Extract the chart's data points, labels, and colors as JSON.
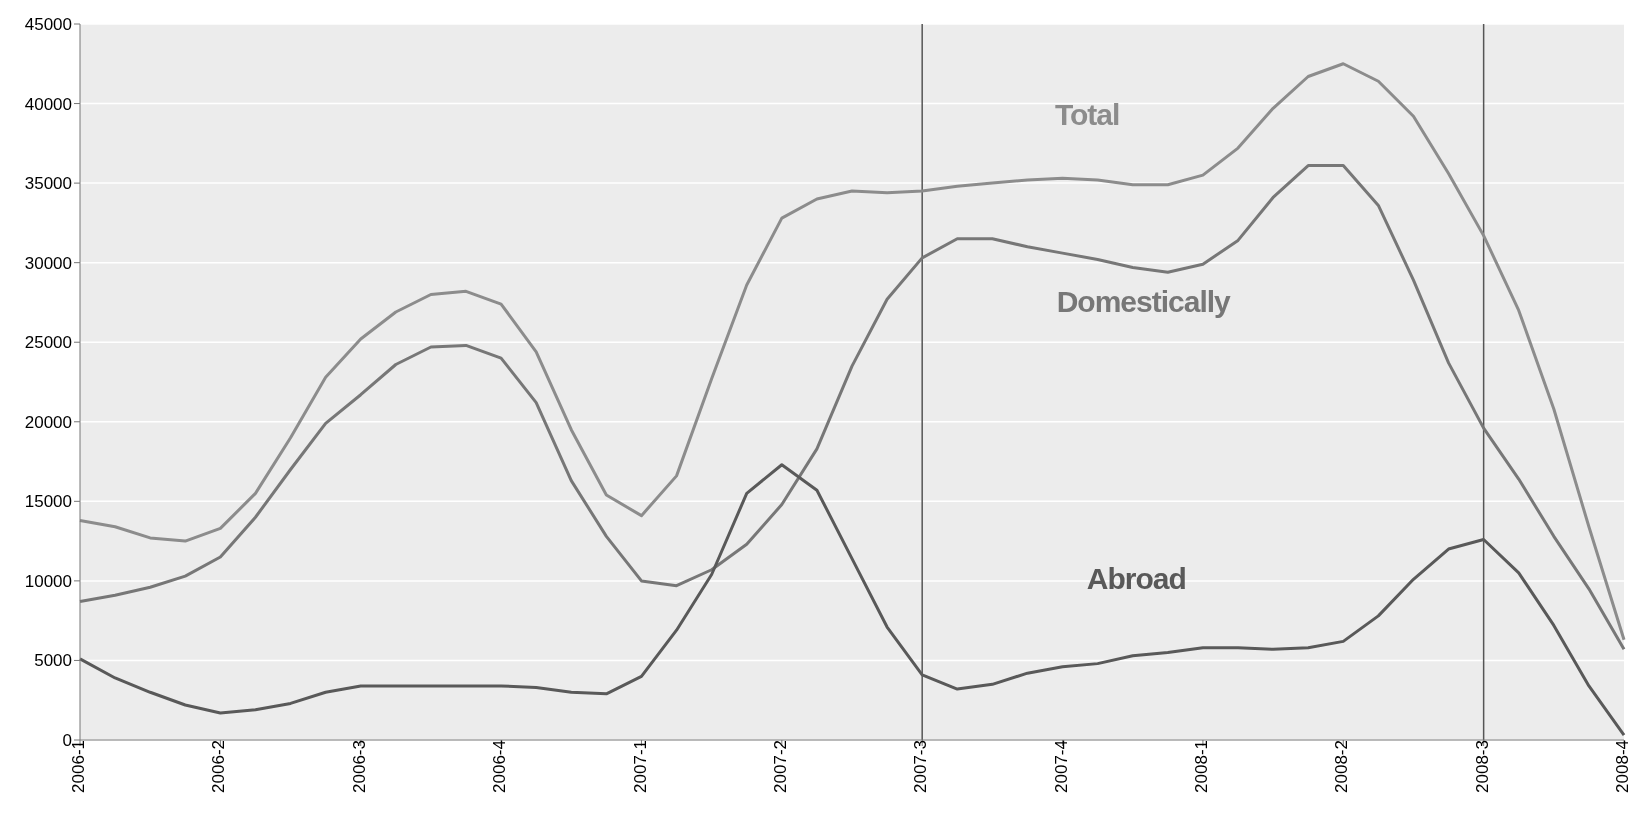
{
  "chart_data": {
    "type": "line",
    "categories": [
      "2006-1",
      null,
      null,
      null,
      "2006-2",
      null,
      null,
      null,
      "2006-3",
      null,
      null,
      null,
      "2006-4",
      null,
      null,
      null,
      "2007-1",
      null,
      null,
      null,
      "2007-2",
      null,
      null,
      null,
      "2007-3",
      null,
      null,
      null,
      "2007-4",
      null,
      null,
      null,
      "2008-1",
      null,
      null,
      null,
      "2008-2",
      null,
      null,
      null,
      "2008-3",
      null,
      null,
      null,
      "2008-4"
    ],
    "ylim": [
      0,
      45000
    ],
    "yticks": [
      0,
      5000,
      10000,
      15000,
      20000,
      25000,
      30000,
      35000,
      40000,
      45000
    ],
    "grid": "y",
    "legend": false,
    "marker": "none",
    "line_style": "solid",
    "ref_lines": [
      {
        "axis": "x",
        "value": "2007-3",
        "color": "#555555"
      },
      {
        "axis": "x",
        "value": "2008-3",
        "color": "#555555"
      }
    ],
    "series": [
      {
        "name": "Total",
        "color": "#8c8c8c",
        "values": [
          13800,
          13400,
          12700,
          12500,
          13300,
          15500,
          19000,
          22800,
          25200,
          26900,
          28000,
          28200,
          27400,
          24400,
          19500,
          15400,
          14100,
          16600,
          22700,
          28600,
          32800,
          34000,
          34500,
          34400,
          34500,
          34800,
          35000,
          35200,
          35300,
          35200,
          34900,
          34900,
          35500,
          37200,
          39700,
          41700,
          42500,
          41400,
          39200,
          35600,
          31700,
          27000,
          20800,
          13400,
          6300
        ]
      },
      {
        "name": "Domestically",
        "color": "#777777",
        "values": [
          8700,
          9100,
          9600,
          10300,
          11500,
          14000,
          17000,
          19900,
          21700,
          23600,
          24700,
          24800,
          24000,
          21200,
          16300,
          12800,
          10000,
          9700,
          10700,
          12300,
          14800,
          18300,
          23500,
          27700,
          30300,
          31500,
          31500,
          31000,
          30600,
          30200,
          29700,
          29400,
          29900,
          31400,
          34100,
          36100,
          36100,
          33600,
          28900,
          23700,
          19600,
          16400,
          12800,
          9500,
          5700
        ]
      },
      {
        "name": "Abroad",
        "color": "#595959",
        "values": [
          5100,
          3900,
          3000,
          2200,
          1700,
          1900,
          2300,
          3000,
          3400,
          3400,
          3400,
          3400,
          3400,
          3300,
          3000,
          2900,
          4000,
          6900,
          10400,
          15500,
          17300,
          15700,
          11400,
          7100,
          4100,
          3200,
          3500,
          4200,
          4600,
          4800,
          5300,
          5500,
          5800,
          5800,
          5700,
          5800,
          6200,
          7800,
          10100,
          12000,
          12600,
          10500,
          7200,
          3400,
          300
        ]
      }
    ]
  }
}
